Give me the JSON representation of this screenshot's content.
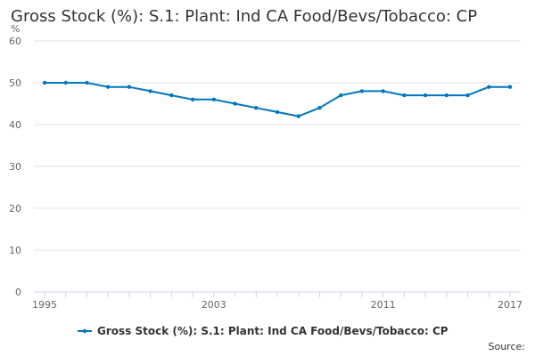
{
  "chart_data": {
    "type": "line",
    "title": "Gross Stock (%): S.1: Plant: Ind CA Food/Bevs/Tobacco: CP",
    "ylabel": "%",
    "xlabel": "",
    "ylim": [
      0,
      60
    ],
    "yticks": [
      0,
      10,
      20,
      30,
      40,
      50,
      60
    ],
    "xlim": [
      1995,
      2017
    ],
    "xtick_labels": [
      "1995",
      "2003",
      "2011",
      "2017"
    ],
    "xtick_values": [
      1995,
      2003,
      2011,
      2017
    ],
    "x": [
      1995,
      1996,
      1997,
      1998,
      1999,
      2000,
      2001,
      2002,
      2003,
      2004,
      2005,
      2006,
      2007,
      2008,
      2009,
      2010,
      2011,
      2012,
      2013,
      2014,
      2015,
      2016,
      2017
    ],
    "series": [
      {
        "name": "Gross Stock (%): S.1: Plant: Ind CA Food/Bevs/Tobacco: CP",
        "color": "#0076c0",
        "values": [
          50,
          50,
          50,
          49,
          49,
          48,
          47,
          46,
          46,
          45,
          44,
          43,
          42,
          44,
          47,
          48,
          48,
          47,
          47,
          47,
          47,
          49,
          49
        ]
      }
    ],
    "grid": true,
    "legend_position": "bottom-center",
    "source_label": "Source:"
  }
}
